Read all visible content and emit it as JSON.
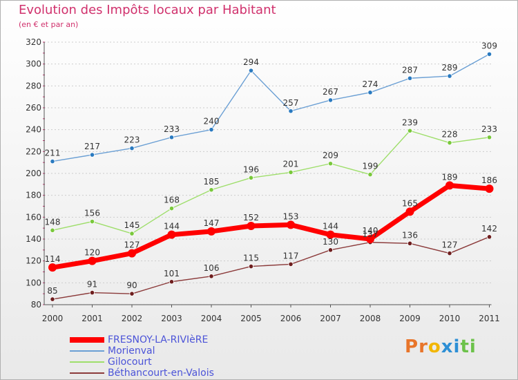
{
  "title": "Evolution des Impôts locaux par Habitant",
  "subtitle": "(en € et par an)",
  "logo_text": "Proxiti",
  "colors": {
    "title": "#d0306c",
    "legend_text": "#4b53d8",
    "axis": "#555555",
    "grid": "#cccccc",
    "logo": [
      "#e8752a",
      "#e8752a",
      "#f2b600",
      "#2d8fd5",
      "#2d8fd5",
      "#6cc24a",
      "#6cc24a"
    ]
  },
  "chart_data": {
    "type": "line",
    "categories": [
      "2000",
      "2001",
      "2002",
      "2003",
      "2004",
      "2005",
      "2006",
      "2007",
      "2008",
      "2009",
      "2010",
      "2011"
    ],
    "y_ticks": [
      "80",
      "100",
      "120",
      "140",
      "160",
      "180",
      "200",
      "220",
      "240",
      "260",
      "280",
      "300",
      "320"
    ],
    "ylim": [
      80,
      320
    ],
    "grid": "horizontal dashed",
    "legend_placement": "bottom-left",
    "series": [
      {
        "name": "FRESNOY-LA-RIVIèRE",
        "color": "#ff0000",
        "emphasis": "thick",
        "values": [
          114,
          120,
          127,
          144,
          147,
          152,
          153,
          144,
          140,
          165,
          189,
          186
        ],
        "labels": [
          "114",
          "120",
          "127",
          "144",
          "147",
          "152",
          "153",
          "144",
          "140",
          "165",
          "189",
          "186"
        ]
      },
      {
        "name": "Morienval",
        "color": "#6a9fd4",
        "marker": "#2a7ac0",
        "values": [
          211,
          217,
          223,
          233,
          240,
          294,
          257,
          267,
          274,
          287,
          289,
          309
        ],
        "labels": [
          "211",
          "217",
          "223",
          "233",
          "240",
          "294",
          "257",
          "267",
          "274",
          "287",
          "289",
          "309"
        ]
      },
      {
        "name": "Gilocourt",
        "color": "#9ede6a",
        "marker": "#79c83b",
        "values": [
          148,
          156,
          145,
          168,
          185,
          196,
          201,
          209,
          199,
          239,
          228,
          233
        ],
        "labels": [
          "148",
          "156",
          "145",
          "168",
          "185",
          "196",
          "201",
          "209",
          "199",
          "239",
          "228",
          "233"
        ]
      },
      {
        "name": "Béthancourt-en-Valois",
        "color": "#8b3a3a",
        "marker": "#6e1e1e",
        "values": [
          85,
          91,
          90,
          101,
          106,
          115,
          117,
          130,
          137,
          136,
          127,
          142
        ],
        "labels": [
          "85",
          "91",
          "90",
          "101",
          "106",
          "115",
          "117",
          "130",
          "137",
          "136",
          "127",
          "142"
        ]
      }
    ]
  }
}
